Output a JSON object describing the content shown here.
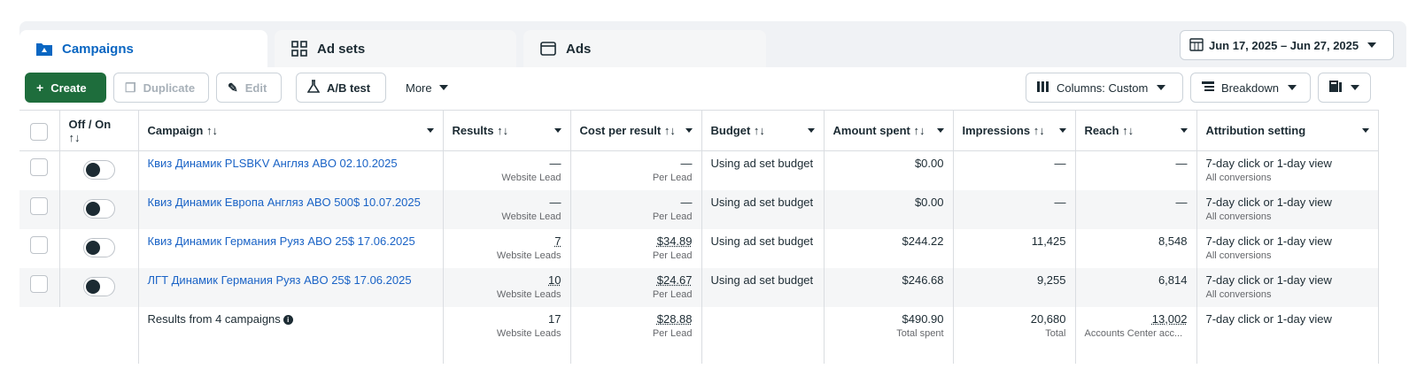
{
  "tabs": [
    {
      "label": "Campaigns",
      "icon": "folder-icon",
      "active": true
    },
    {
      "label": "Ad sets",
      "icon": "grid-icon",
      "active": false
    },
    {
      "label": "Ads",
      "icon": "ad-icon",
      "active": false
    }
  ],
  "date_range": "Jun 17, 2025 – Jun 27, 2025",
  "toolbar": {
    "create": "Create",
    "duplicate": "Duplicate",
    "edit": "Edit",
    "ab_test": "A/B test",
    "more": "More",
    "columns": "Columns: Custom",
    "breakdown": "Breakdown"
  },
  "columns": {
    "off_on": "Off / On",
    "campaign": "Campaign",
    "results": "Results",
    "cost_per_result": "Cost per result",
    "budget": "Budget",
    "amount_spent": "Amount spent",
    "impressions": "Impressions",
    "reach": "Reach",
    "attribution": "Attribution setting"
  },
  "sort_glyph": "↑↓",
  "rows": [
    {
      "campaign": "Квиз Динамик PLSBKV Англяз ABO 02.10.2025",
      "results": "—",
      "results_sub": "Website Lead",
      "cost": "—",
      "cost_sub": "Per Lead",
      "budget": "Using ad set budget",
      "spent": "$0.00",
      "impressions": "—",
      "reach": "—",
      "attribution": "7-day click or 1-day view",
      "attribution_sub": "All conversions"
    },
    {
      "campaign": "Квиз Динамик Европа Англяз ABO 500$ 10.07.2025",
      "results": "—",
      "results_sub": "Website Lead",
      "cost": "—",
      "cost_sub": "Per Lead",
      "budget": "Using ad set budget",
      "spent": "$0.00",
      "impressions": "—",
      "reach": "—",
      "attribution": "7-day click or 1-day view",
      "attribution_sub": "All conversions"
    },
    {
      "campaign": "Квиз Динамик Германия Руяз ABO 25$ 17.06.2025",
      "results": "7",
      "results_sub": "Website Leads",
      "cost": "$34.89",
      "cost_sub": "Per Lead",
      "budget": "Using ad set budget",
      "spent": "$244.22",
      "impressions": "11,425",
      "reach": "8,548",
      "attribution": "7-day click or 1-day view",
      "attribution_sub": "All conversions"
    },
    {
      "campaign": "ЛГТ Динамик Германия Руяз ABO 25$ 17.06.2025",
      "results": "10",
      "results_sub": "Website Leads",
      "cost": "$24.67",
      "cost_sub": "Per Lead",
      "budget": "Using ad set budget",
      "spent": "$246.68",
      "impressions": "9,255",
      "reach": "6,814",
      "attribution": "7-day click or 1-day view",
      "attribution_sub": "All conversions"
    }
  ],
  "summary": {
    "label": "Results from 4 campaigns",
    "results": "17",
    "results_sub": "Website Leads",
    "cost": "$28.88",
    "cost_sub": "Per Lead",
    "spent": "$490.90",
    "spent_sub": "Total spent",
    "impressions": "20,680",
    "impressions_sub": "Total",
    "reach": "13,002",
    "reach_sub": "Accounts Center acc...",
    "attribution": "7-day click or 1-day view"
  }
}
